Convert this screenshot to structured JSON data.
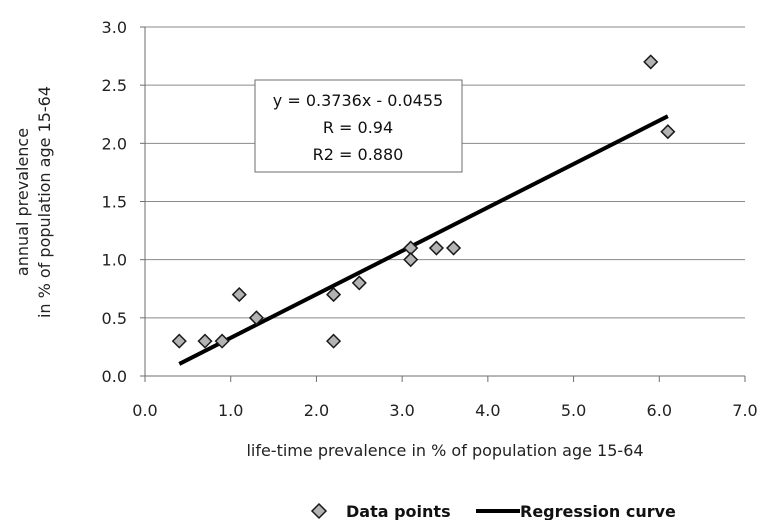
{
  "chart_data": {
    "type": "scatter",
    "title": "",
    "xlabel": "life-time prevalence in % of population age 15-64",
    "ylabel_lines": [
      "annual prevalence",
      "in % of population age 15-64"
    ],
    "xlim": [
      0,
      7
    ],
    "ylim": [
      0,
      3
    ],
    "x_ticks": [
      0,
      1,
      2,
      3,
      4,
      5,
      6,
      7
    ],
    "x_tick_labels": [
      "0.0",
      "1.0",
      "2.0",
      "3.0",
      "4.0",
      "5.0",
      "6.0",
      "7.0"
    ],
    "y_ticks": [
      0,
      0.5,
      1,
      1.5,
      2,
      2.5,
      3
    ],
    "y_tick_labels": [
      "0.0",
      "0.5",
      "1.0",
      "1.5",
      "2.0",
      "2.5",
      "3.0"
    ],
    "grid": "horizontal",
    "series": [
      {
        "name": "Data points",
        "kind": "scatter",
        "marker": "diamond",
        "color": "#b3b3b3",
        "points": [
          {
            "x": 0.4,
            "y": 0.3
          },
          {
            "x": 0.7,
            "y": 0.3
          },
          {
            "x": 0.9,
            "y": 0.3
          },
          {
            "x": 1.1,
            "y": 0.7
          },
          {
            "x": 1.3,
            "y": 0.5
          },
          {
            "x": 2.2,
            "y": 0.7
          },
          {
            "x": 2.2,
            "y": 0.3
          },
          {
            "x": 2.5,
            "y": 0.8
          },
          {
            "x": 3.1,
            "y": 1.1
          },
          {
            "x": 3.1,
            "y": 1.0
          },
          {
            "x": 3.4,
            "y": 1.1
          },
          {
            "x": 3.6,
            "y": 1.1
          },
          {
            "x": 5.9,
            "y": 2.7
          },
          {
            "x": 6.1,
            "y": 2.1
          }
        ]
      },
      {
        "name": "Regression curve",
        "kind": "line",
        "color": "#000000",
        "slope": 0.3736,
        "intercept": -0.0455,
        "x_range": [
          0.4,
          6.1
        ]
      }
    ],
    "annotation": {
      "lines": [
        "y = 0.3736x - 0.0455",
        "R = 0.94",
        "R2 = 0.880"
      ]
    },
    "legend": {
      "position": "bottom-center",
      "entries": [
        "Data points",
        "Regression curve"
      ]
    }
  }
}
